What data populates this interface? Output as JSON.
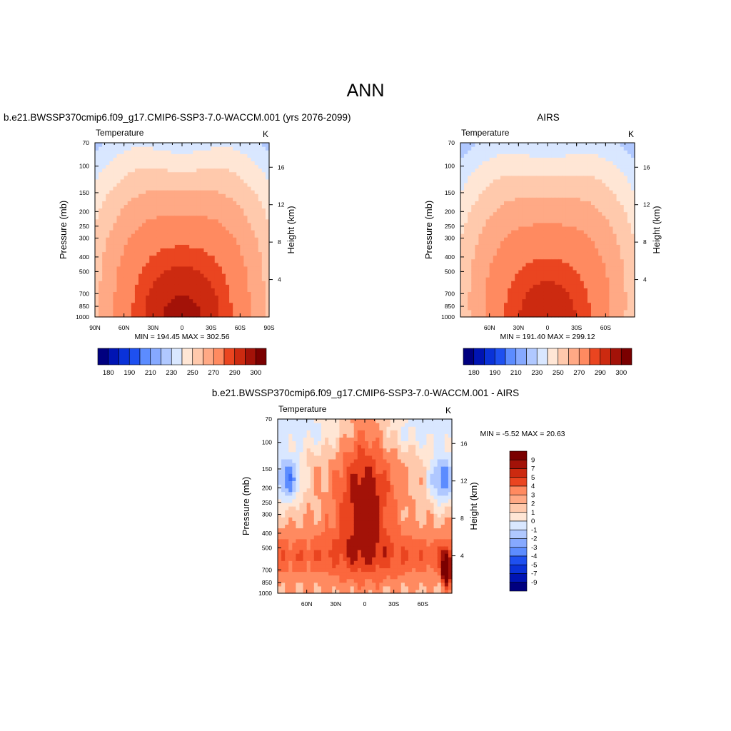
{
  "main_title": "ANN",
  "colors": {
    "diverging_scale": [
      "#00007f",
      "#0014b3",
      "#0a32d8",
      "#1e50f0",
      "#3a6cfa",
      "#5c8cff",
      "#86a9ff",
      "#b0c8ff",
      "#d9e7ff",
      "#ffe6d5",
      "#ffc9ac",
      "#ffa985",
      "#ff8a60",
      "#fb673d",
      "#ea4520",
      "#cc2a10",
      "#a31208",
      "#7a0000"
    ],
    "background": "#ffffff"
  },
  "chart_data": [
    {
      "type": "heatmap",
      "title": "b.e21.BWSSP370cmip6.f09_g17.CMIP6-SSP3-7.0-WACCM.001 (yrs 2076-2099)",
      "variable_label": "Temperature",
      "units_label": "K",
      "ylabel": "Pressure (mb)",
      "y2label": "Height (km)",
      "xlim": [
        90,
        -90
      ],
      "ylim": [
        1000,
        70
      ],
      "yscale": "log",
      "x_ticks": [
        {
          "v": 90,
          "l": "90N"
        },
        {
          "v": 60,
          "l": "60N"
        },
        {
          "v": 30,
          "l": "30N"
        },
        {
          "v": 0,
          "l": "0"
        },
        {
          "v": -30,
          "l": "30S"
        },
        {
          "v": -60,
          "l": "60S"
        },
        {
          "v": -90,
          "l": "90S"
        }
      ],
      "y_ticks": [
        1000,
        850,
        700,
        500,
        400,
        300,
        250,
        200,
        150,
        100,
        70
      ],
      "y2_ticks": [
        4,
        8,
        12,
        16
      ],
      "stats": "MIN = 194.45  MAX = 302.56",
      "field": {
        "min": 194.45,
        "max": 302.56
      },
      "colorbar": {
        "orientation": "horizontal",
        "levels": [
          180,
          185,
          190,
          200,
          210,
          220,
          230,
          240,
          250,
          260,
          270,
          280,
          290,
          295,
          300,
          305
        ],
        "labels": [
          "180",
          "190",
          "210",
          "230",
          "250",
          "270",
          "290",
          "300"
        ]
      }
    },
    {
      "type": "heatmap",
      "title": "AIRS",
      "variable_label": "Temperature",
      "units_label": "K",
      "ylabel": "Pressure (mb)",
      "y2label": "Height (km)",
      "xlim": [
        90,
        -90
      ],
      "ylim": [
        1000,
        70
      ],
      "yscale": "log",
      "x_ticks": [
        {
          "v": 60,
          "l": "60N"
        },
        {
          "v": 30,
          "l": "30N"
        },
        {
          "v": 0,
          "l": "0"
        },
        {
          "v": -30,
          "l": "30S"
        },
        {
          "v": -60,
          "l": "60S"
        }
      ],
      "y_ticks": [
        1000,
        850,
        700,
        500,
        400,
        300,
        250,
        200,
        150,
        100,
        70
      ],
      "y2_ticks": [
        4,
        8,
        12,
        16
      ],
      "stats": "MIN = 191.40  MAX = 299.12",
      "field": {
        "min": 191.4,
        "max": 299.12
      },
      "colorbar": {
        "orientation": "horizontal",
        "levels": [
          180,
          185,
          190,
          200,
          210,
          220,
          230,
          240,
          250,
          260,
          270,
          280,
          290,
          295,
          300,
          305
        ],
        "labels": [
          "180",
          "190",
          "210",
          "230",
          "250",
          "270",
          "290",
          "300"
        ]
      }
    },
    {
      "type": "heatmap",
      "title": "b.e21.BWSSP370cmip6.f09_g17.CMIP6-SSP3-7.0-WACCM.001 - AIRS",
      "variable_label": "Temperature",
      "units_label": "K",
      "ylabel": "Pressure (mb)",
      "y2label": "Height (km)",
      "xlim": [
        90,
        -90
      ],
      "ylim": [
        1000,
        70
      ],
      "yscale": "log",
      "x_ticks": [
        {
          "v": 60,
          "l": "60N"
        },
        {
          "v": 30,
          "l": "30N"
        },
        {
          "v": 0,
          "l": "0"
        },
        {
          "v": -30,
          "l": "30S"
        },
        {
          "v": -60,
          "l": "60S"
        }
      ],
      "y_ticks": [
        1000,
        850,
        700,
        500,
        400,
        300,
        250,
        200,
        150,
        100,
        70
      ],
      "y2_ticks": [
        4,
        8,
        12,
        16
      ],
      "stats": "MIN =  -5.52  MAX =  20.63",
      "field": {
        "min": -5.52,
        "max": 20.63
      },
      "colorbar": {
        "orientation": "vertical",
        "levels": [
          -9,
          -7,
          -5,
          -4,
          -3,
          -2,
          -1,
          0,
          1,
          2,
          3,
          4,
          5,
          7,
          9
        ],
        "labels": [
          "9",
          "7",
          "5",
          "4",
          "3",
          "2",
          "1",
          "0",
          "-1",
          "-2",
          "-3",
          "-4",
          "-5",
          "-7",
          "-9"
        ]
      }
    }
  ]
}
